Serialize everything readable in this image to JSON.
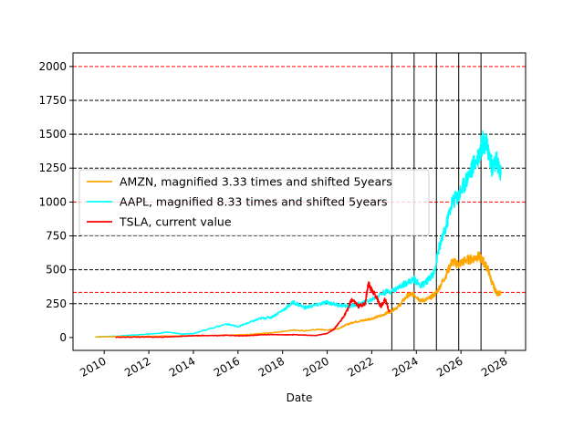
{
  "chart_data": {
    "type": "line",
    "xlabel": "Date",
    "ylabel": "",
    "xlim": [
      2008.6,
      2028.9
    ],
    "ylim": [
      -95,
      2100
    ],
    "x_ticks": [
      2010,
      2012,
      2014,
      2016,
      2018,
      2020,
      2022,
      2024,
      2026,
      2028
    ],
    "x_tick_labels": [
      "2010",
      "2012",
      "2014",
      "2016",
      "2018",
      "2020",
      "2022",
      "2024",
      "2026",
      "2028"
    ],
    "y_ticks": [
      0,
      250,
      500,
      750,
      1000,
      1250,
      1500,
      1750,
      2000
    ],
    "y_tick_labels": [
      "0",
      "250",
      "500",
      "750",
      "1000",
      "1250",
      "1500",
      "1750",
      "2000"
    ],
    "grid": false,
    "legend_position": "center-left",
    "horizontal_lines": [
      {
        "y": 2000,
        "color": "#ff0000",
        "style": "dashed"
      },
      {
        "y": 1750,
        "color": "#000000",
        "style": "dashed"
      },
      {
        "y": 1500,
        "color": "#000000",
        "style": "dashed"
      },
      {
        "y": 1250,
        "color": "#000000",
        "style": "dashed"
      },
      {
        "y": 1000,
        "color": "#ff0000",
        "style": "dashed"
      },
      {
        "y": 750,
        "color": "#000000",
        "style": "dashed"
      },
      {
        "y": 500,
        "color": "#000000",
        "style": "dashed"
      },
      {
        "y": 333,
        "color": "#ff0000",
        "style": "dashed"
      },
      {
        "y": 250,
        "color": "#000000",
        "style": "dashed"
      }
    ],
    "vertical_lines": [
      {
        "x": 2022.9,
        "color": "#000000",
        "style": "solid"
      },
      {
        "x": 2023.9,
        "color": "#000000",
        "style": "solid"
      },
      {
        "x": 2024.9,
        "color": "#000000",
        "style": "solid"
      },
      {
        "x": 2025.9,
        "color": "#000000",
        "style": "solid"
      },
      {
        "x": 2026.9,
        "color": "#000000",
        "style": "solid"
      }
    ],
    "series": [
      {
        "name": "AMZN, magnified 3.33 times and shifted 5years",
        "color": "#ffa500",
        "x": [
          2009.6,
          2010.5,
          2011.5,
          2012.5,
          2013.5,
          2014.5,
          2015.5,
          2016.5,
          2017.5,
          2018.5,
          2019.0,
          2019.6,
          2020.0,
          2020.5,
          2020.8,
          2021.2,
          2021.6,
          2022.0,
          2022.4,
          2022.8,
          2023.2,
          2023.6,
          2023.9,
          2024.2,
          2024.6,
          2024.9,
          2025.3,
          2025.6,
          2025.9,
          2026.2,
          2026.5,
          2026.8,
          2027.0,
          2027.2,
          2027.4,
          2027.6,
          2027.8
        ],
        "y": [
          5,
          7,
          8,
          10,
          12,
          15,
          18,
          22,
          35,
          55,
          50,
          60,
          55,
          65,
          90,
          115,
          125,
          140,
          160,
          190,
          230,
          310,
          320,
          270,
          290,
          330,
          450,
          560,
          540,
          570,
          580,
          600,
          560,
          510,
          400,
          330,
          320
        ]
      },
      {
        "name": "AAPL, magnified 8.33 times and shifted 5years",
        "color": "#00ffff",
        "x": [
          2009.6,
          2010.5,
          2011.5,
          2012.4,
          2012.8,
          2013.5,
          2014.0,
          2014.5,
          2015.5,
          2016.0,
          2016.5,
          2017.0,
          2017.5,
          2018.0,
          2018.5,
          2019.0,
          2019.5,
          2020.0,
          2020.5,
          2021.0,
          2021.5,
          2022.0,
          2022.5,
          2023.0,
          2023.5,
          2023.9,
          2024.2,
          2024.5,
          2024.8,
          2025.0,
          2025.3,
          2025.6,
          2025.9,
          2026.2,
          2026.5,
          2026.8,
          2027.0,
          2027.2,
          2027.4,
          2027.6,
          2027.8
        ],
        "y": [
          5,
          10,
          20,
          30,
          40,
          25,
          30,
          55,
          100,
          80,
          110,
          140,
          150,
          200,
          260,
          220,
          240,
          260,
          240,
          230,
          250,
          280,
          330,
          350,
          400,
          430,
          380,
          420,
          480,
          650,
          800,
          1000,
          1050,
          1150,
          1250,
          1350,
          1450,
          1400,
          1250,
          1300,
          1200
        ]
      },
      {
        "name": "TSLA, current value",
        "color": "#ff0000",
        "x": [
          2010.5,
          2011.5,
          2012.5,
          2013.3,
          2013.6,
          2014.0,
          2014.5,
          2015.0,
          2015.5,
          2016.0,
          2016.5,
          2017.0,
          2017.5,
          2018.0,
          2018.5,
          2019.0,
          2019.5,
          2020.0,
          2020.3,
          2020.6,
          2020.9,
          2021.1,
          2021.4,
          2021.7,
          2021.85,
          2022.0,
          2022.2,
          2022.4,
          2022.6,
          2022.8
        ],
        "y": [
          2,
          3,
          3,
          8,
          10,
          14,
          15,
          14,
          17,
          13,
          14,
          20,
          22,
          20,
          21,
          18,
          15,
          30,
          60,
          120,
          200,
          280,
          230,
          250,
          400,
          350,
          300,
          230,
          280,
          190
        ]
      }
    ]
  }
}
